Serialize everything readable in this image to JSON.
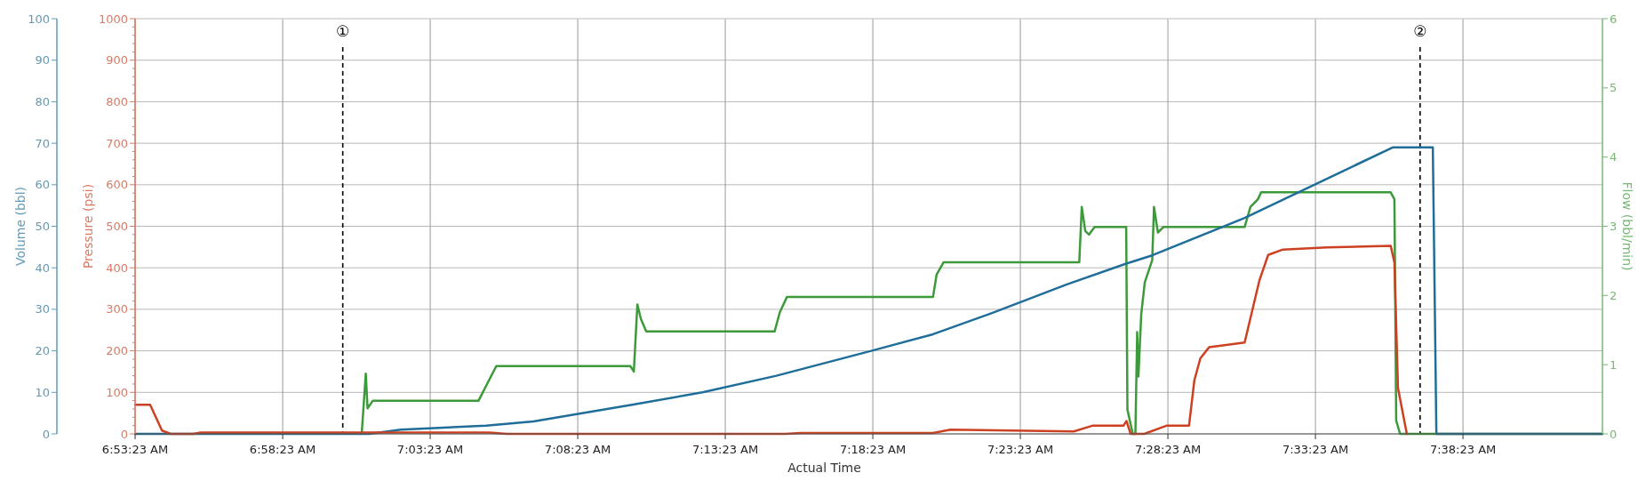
{
  "chart_data": {
    "type": "line",
    "xlabel": "Actual Time",
    "ylabel": "Pressure (psi)",
    "y2label": "Volume (bbl)",
    "y3label": "Flow (bbl/min)",
    "xlim": [
      6.8897,
      7.7185
    ],
    "xticks": [
      {
        "value": 6.889722,
        "label": "6:53:23 AM"
      },
      {
        "value": 6.973056,
        "label": "6:58:23 AM"
      },
      {
        "value": 7.056389,
        "label": "7:03:23 AM"
      },
      {
        "value": 7.139722,
        "label": "7:08:23 AM"
      },
      {
        "value": 7.223056,
        "label": "7:13:23 AM"
      },
      {
        "value": 7.306389,
        "label": "7:18:23 AM"
      },
      {
        "value": 7.389722,
        "label": "7:23:23 AM"
      },
      {
        "value": 7.473056,
        "label": "7:28:23 AM"
      },
      {
        "value": 7.556389,
        "label": "7:33:23 AM"
      },
      {
        "value": 7.639722,
        "label": "7:38:23 AM"
      }
    ],
    "ylim": [
      0,
      1000
    ],
    "yticks": [
      0,
      {
        "value": 20,
        "label": null
      },
      {
        "value": 40,
        "label": null
      },
      {
        "value": 60,
        "label": null
      },
      {
        "value": 80,
        "label": null
      },
      100,
      {
        "value": 120,
        "label": null
      },
      {
        "value": 140,
        "label": null
      },
      {
        "value": 160,
        "label": null
      },
      {
        "value": 180,
        "label": null
      },
      200,
      {
        "value": 220,
        "label": null
      },
      {
        "value": 240,
        "label": null
      },
      {
        "value": 260,
        "label": null
      },
      {
        "value": 280,
        "label": null
      },
      300,
      {
        "value": 320,
        "label": null
      },
      {
        "value": 340,
        "label": null
      },
      {
        "value": 360,
        "label": null
      },
      {
        "value": 380,
        "label": null
      },
      400,
      {
        "value": 420,
        "label": null
      },
      {
        "value": 440,
        "label": null
      },
      {
        "value": 460,
        "label": null
      },
      {
        "value": 480,
        "label": null
      },
      500,
      {
        "value": 520,
        "label": null
      },
      {
        "value": 540,
        "label": null
      },
      {
        "value": 560,
        "label": null
      },
      {
        "value": 580,
        "label": null
      },
      600,
      {
        "value": 620,
        "label": null
      },
      {
        "value": 640,
        "label": null
      },
      {
        "value": 660,
        "label": null
      },
      {
        "value": 680,
        "label": null
      },
      700,
      {
        "value": 720,
        "label": null
      },
      {
        "value": 740,
        "label": null
      },
      {
        "value": 760,
        "label": null
      },
      {
        "value": 780,
        "label": null
      },
      800,
      {
        "value": 820,
        "label": null
      },
      {
        "value": 840,
        "label": null
      },
      {
        "value": 860,
        "label": null
      },
      {
        "value": 880,
        "label": null
      },
      900,
      {
        "value": 920,
        "label": null
      },
      {
        "value": 940,
        "label": null
      },
      {
        "value": 960,
        "label": null
      },
      {
        "value": 980,
        "label": null
      },
      1000
    ],
    "y2lim": [
      0,
      100
    ],
    "y2ticks": [
      0,
      10,
      20,
      30,
      40,
      50,
      60,
      70,
      80,
      90,
      100
    ],
    "y3lim": [
      0,
      6
    ],
    "y3ticks": [
      0,
      1,
      2,
      3,
      4,
      5,
      6
    ],
    "grid": true,
    "series": [
      {
        "axis": "y3",
        "color": "#3d9a3a",
        "x": [
          7.0177,
          7.02,
          7.021,
          7.024,
          7.0837,
          7.0937,
          7.1694,
          7.1714,
          7.1734,
          7.1754,
          7.1784,
          7.2509,
          7.2539,
          7.2579,
          7.3404,
          7.3424,
          7.3464,
          7.423,
          7.4244,
          7.4264,
          7.4285,
          7.4317,
          7.4495,
          7.4502,
          7.4532,
          7.4547,
          7.4557,
          7.4564,
          7.458,
          7.46,
          7.4642,
          7.4652,
          7.4674,
          7.4705,
          7.5164,
          7.5197,
          7.5239,
          7.5257,
          7.5989,
          7.601,
          7.602,
          7.6042,
          7.7185
        ],
        "values": [
          0,
          0.87,
          0.37,
          0.48,
          0.48,
          0.98,
          0.98,
          0.9,
          1.87,
          1.66,
          1.48,
          1.48,
          1.76,
          1.98,
          1.98,
          2.3,
          2.48,
          2.48,
          3.28,
          2.93,
          2.88,
          2.99,
          2.99,
          0.35,
          0,
          0,
          1.47,
          0.83,
          1.73,
          2.19,
          2.51,
          3.28,
          2.91,
          2.99,
          2.99,
          3.28,
          3.39,
          3.49,
          3.49,
          3.39,
          0.19,
          0,
          0
        ]
      },
      {
        "axis": "y2",
        "color": "#1f6e99",
        "x": [
          6.8897,
          7.022,
          7.0397,
          7.088,
          7.1147,
          7.1704,
          7.2102,
          7.2519,
          7.3055,
          7.3404,
          7.373,
          7.416,
          7.4495,
          7.4642,
          7.5164,
          7.6,
          7.6227,
          7.6247,
          7.7185
        ],
        "values": [
          0,
          0,
          1,
          2,
          3,
          7,
          10,
          14,
          20,
          24,
          29,
          36,
          41,
          43,
          52,
          69,
          69,
          0,
          0
        ]
      },
      {
        "color": "#cc4122",
        "x": [
          6.8897,
          6.8982,
          6.9049,
          6.9097,
          6.9227,
          6.9267,
          7.0897,
          7.0997,
          7.2569,
          7.2657,
          7.3404,
          7.3502,
          7.4199,
          7.4307,
          7.448,
          7.4497,
          7.452,
          7.4597,
          7.4725,
          7.485,
          7.488,
          7.4914,
          7.4964,
          7.5164,
          7.5247,
          7.5297,
          7.538,
          7.563,
          7.5989,
          7.601,
          7.603,
          7.608
        ],
        "values": [
          70,
          70,
          8,
          0,
          0,
          3,
          3,
          0,
          0,
          2,
          2,
          10,
          6,
          20,
          20,
          31,
          0,
          0,
          20,
          20,
          129,
          182,
          209,
          220,
          369,
          431,
          444,
          449,
          453,
          413,
          111,
          0
        ]
      }
    ],
    "ref_lines": [
      {
        "axis": "x",
        "value": 7.007,
        "label": "①",
        "color": "#000000",
        "line_style": "dashed"
      },
      {
        "axis": "x",
        "value": 7.6155,
        "label": "②",
        "color": "#000000",
        "line_style": "dashed"
      }
    ]
  }
}
